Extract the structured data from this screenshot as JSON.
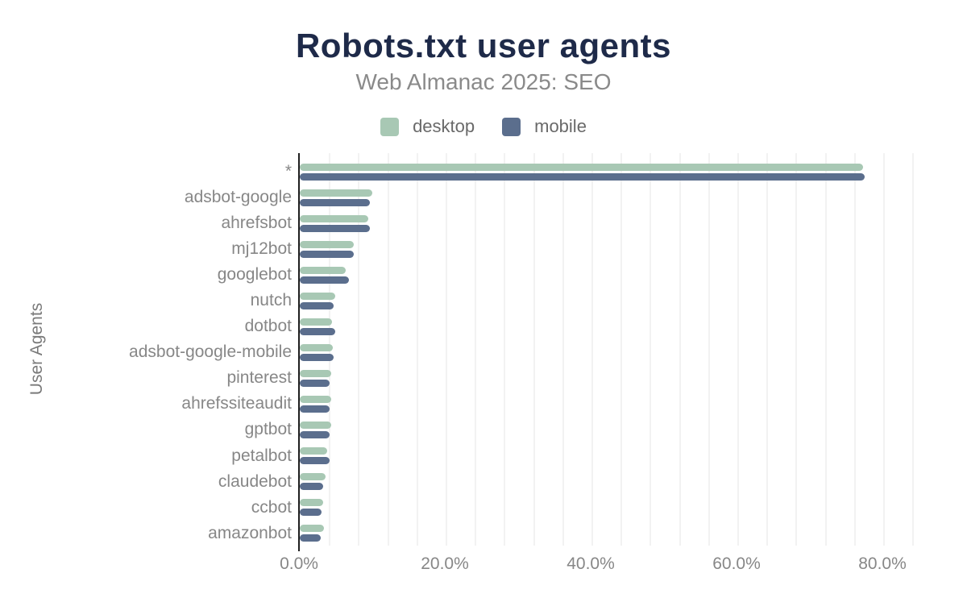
{
  "chart_data": {
    "type": "bar",
    "orientation": "horizontal",
    "title": "Robots.txt user agents",
    "subtitle": "Web Almanac 2025: SEO",
    "ylabel": "User Agents",
    "xlabel": "",
    "legend_position": "top",
    "grid": true,
    "categories": [
      "*",
      "adsbot-google",
      "ahrefsbot",
      "mj12bot",
      "googlebot",
      "nutch",
      "dotbot",
      "adsbot-google-mobile",
      "pinterest",
      "ahrefssiteaudit",
      "gptbot",
      "petalbot",
      "claudebot",
      "ccbot",
      "amazonbot"
    ],
    "series": [
      {
        "name": "desktop",
        "color": "#a8c8b4",
        "values": [
          77.2,
          9.9,
          9.4,
          7.4,
          6.3,
          4.9,
          4.4,
          4.5,
          4.3,
          4.3,
          4.3,
          3.8,
          3.5,
          3.2,
          3.3
        ]
      },
      {
        "name": "mobile",
        "color": "#5b6e8d",
        "values": [
          77.5,
          9.6,
          9.6,
          7.4,
          6.7,
          4.6,
          4.9,
          4.6,
          4.1,
          4.1,
          4.1,
          4.1,
          3.2,
          3.0,
          2.9
        ]
      }
    ],
    "x_axis": {
      "min": 0,
      "max": 86,
      "tick_values": [
        0,
        20,
        40,
        60,
        80
      ],
      "tick_labels": [
        "0.0%",
        "20.0%",
        "40.0%",
        "60.0%",
        "80.0%"
      ],
      "minor_grid_step": 4,
      "unit": "percent"
    },
    "colors": {
      "title": "#1e2a49",
      "subtitle": "#8a8a8a",
      "axis_labels": "#878787",
      "legend_text": "#696969",
      "axis_line": "#1f1f1f",
      "gridline": "#f2f2f2",
      "background": "#ffffff"
    }
  }
}
